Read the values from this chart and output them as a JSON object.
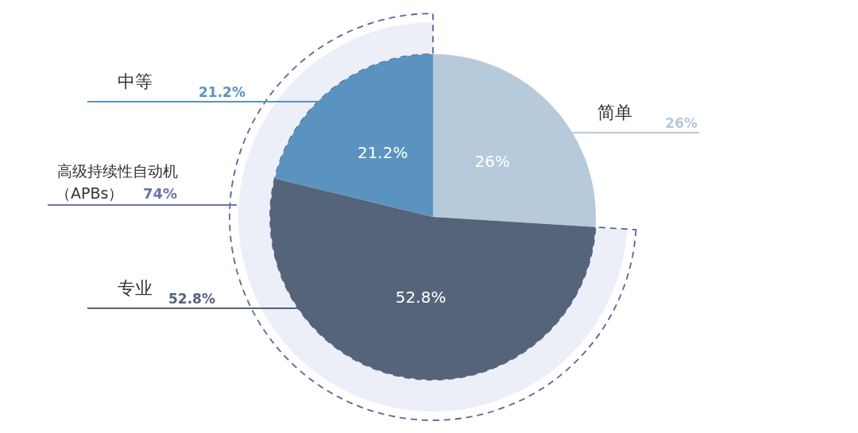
{
  "chart_data": {
    "type": "pie",
    "categories": [
      "简单",
      "专业",
      "中等"
    ],
    "values": [
      26,
      52.8,
      21.2
    ],
    "colors": [
      "#b7cadb",
      "#56647a",
      "#5b93c0"
    ],
    "value_labels": [
      "26%",
      "52.8%",
      "21.2%"
    ],
    "annotations": [
      "高级持续性自动机",
      "（APBs）",
      "74%"
    ]
  }
}
